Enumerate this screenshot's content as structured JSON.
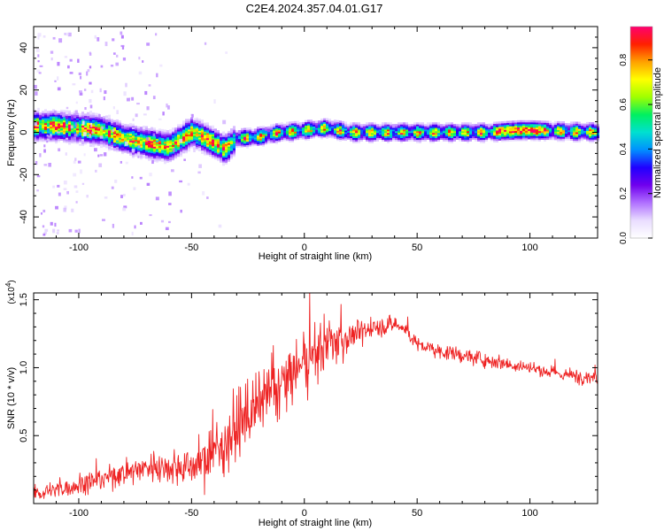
{
  "title": "C2E4.2024.357.04.01.G17",
  "colors": {
    "snr_line": "#ee2222",
    "colormap": [
      "#ffffff",
      "#e9ddff",
      "#b070ff",
      "#7000ee",
      "#2000ff",
      "#0090ff",
      "#00e0d0",
      "#00f060",
      "#a0ff00",
      "#ffff00",
      "#ffa000",
      "#ff2000",
      "#ff0070"
    ]
  },
  "chart_data": [
    {
      "type": "heatmap",
      "title": "C2E4.2024.357.04.01.G17",
      "xlabel": "Height of straight line (km)",
      "ylabel": "Frequency (Hz)",
      "xlim": [
        -120,
        130
      ],
      "ylim": [
        -50,
        50
      ],
      "x_ticks": [
        -100,
        -50,
        0,
        50,
        100
      ],
      "y_ticks": [
        -40,
        -20,
        0,
        20,
        40
      ],
      "colorbar": {
        "label": "Normalized spectral amplitude",
        "range": [
          0,
          0.95
        ],
        "ticks": [
          0.0,
          0.2,
          0.4,
          0.6,
          0.8
        ]
      },
      "ridge": {
        "x": [
          -117,
          -110,
          -100,
          -90,
          -80,
          -70,
          -60,
          -50,
          -45,
          -40,
          -35,
          -30,
          -20,
          -10,
          0,
          10,
          20,
          50,
          80,
          95,
          100,
          130
        ],
        "frequency": [
          3,
          3,
          2,
          1,
          -3,
          -5,
          -7,
          0,
          -2,
          -5,
          -8,
          -3,
          -2,
          0,
          1,
          2,
          0,
          0,
          0,
          1,
          1,
          0
        ]
      }
    },
    {
      "type": "line",
      "xlabel": "Height of straight line (km)",
      "ylabel": "SNR (10 * v/v)",
      "y_multiplier": "(x10^4)",
      "xlim": [
        -120,
        130
      ],
      "ylim": [
        0,
        15500
      ],
      "x_ticks": [
        -100,
        -50,
        0,
        50,
        100
      ],
      "y_tick_labels": [
        "0.5",
        "1.0",
        "1.5"
      ],
      "y_tick_values": [
        5000,
        10000,
        15000
      ],
      "trend": {
        "x": [
          -120,
          -110,
          -100,
          -90,
          -80,
          -70,
          -60,
          -50,
          -45,
          -40,
          -35,
          -30,
          -25,
          -20,
          -15,
          -10,
          -5,
          0,
          5,
          10,
          20,
          30,
          40,
          45,
          50,
          60,
          80,
          100,
          110,
          120,
          130
        ],
        "y": [
          700,
          1000,
          1400,
          1800,
          2300,
          2700,
          2700,
          2700,
          3200,
          3800,
          4500,
          5600,
          6400,
          7200,
          8100,
          8800,
          9600,
          10200,
          11100,
          11700,
          12300,
          12900,
          13200,
          12800,
          11700,
          11200,
          10600,
          10000,
          9600,
          9400,
          9300
        ]
      },
      "noise": {
        "x": [
          -120,
          -90,
          -60,
          -50,
          -40,
          -30,
          -20,
          -10,
          0,
          10,
          20,
          30,
          50,
          80,
          130
        ],
        "amplitude": [
          700,
          1100,
          1400,
          1800,
          2600,
          3200,
          3000,
          2900,
          2800,
          2600,
          1500,
          900,
          700,
          700,
          650
        ]
      },
      "samples": 1100
    }
  ]
}
